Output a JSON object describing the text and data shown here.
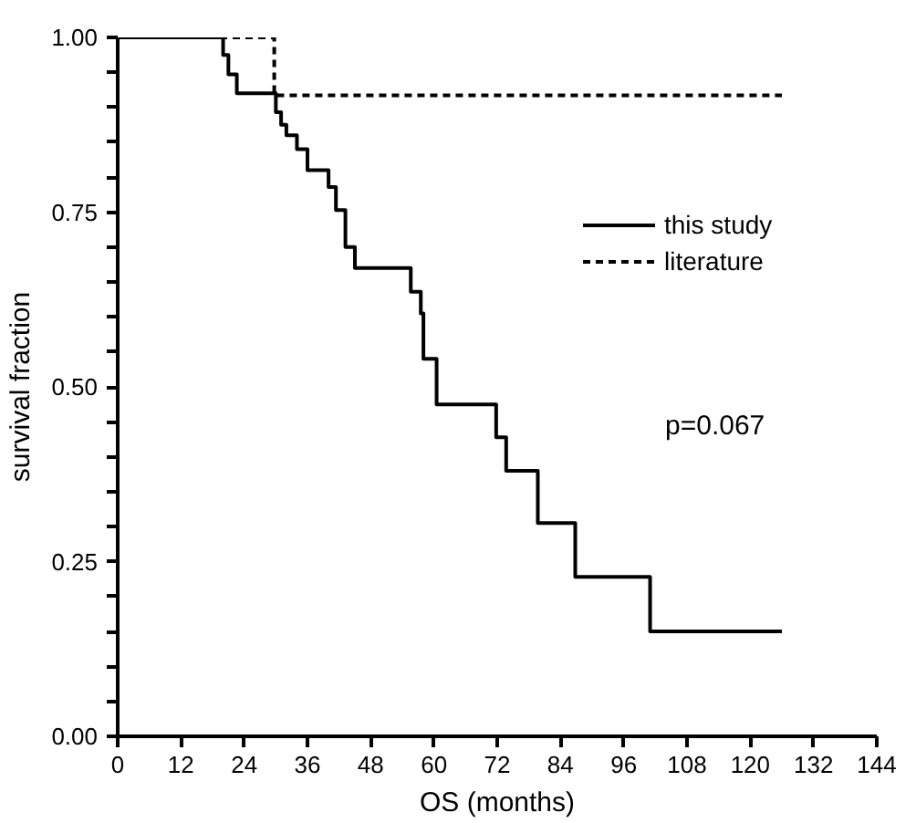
{
  "chart_data": {
    "type": "step",
    "xlabel": "OS (months)",
    "ylabel": "survival fraction",
    "xlim": [
      0,
      144
    ],
    "ylim": [
      0,
      1
    ],
    "xticks": [
      0,
      12,
      24,
      36,
      48,
      60,
      72,
      84,
      96,
      108,
      120,
      132,
      144
    ],
    "yticks": [
      {
        "value": 0,
        "label": "0.00"
      },
      {
        "value": 0.05,
        "label": null
      },
      {
        "value": 0.1,
        "label": null
      },
      {
        "value": 0.15,
        "label": null
      },
      {
        "value": 0.2,
        "label": null
      },
      {
        "value": 0.25,
        "label": "0.25"
      },
      {
        "value": 0.3,
        "label": null
      },
      {
        "value": 0.35,
        "label": null
      },
      {
        "value": 0.4,
        "label": null
      },
      {
        "value": 0.45,
        "label": null
      },
      {
        "value": 0.5,
        "label": "0.50"
      },
      {
        "value": 0.55,
        "label": null
      },
      {
        "value": 0.6,
        "label": null
      },
      {
        "value": 0.65,
        "label": null
      },
      {
        "value": 0.7,
        "label": null
      },
      {
        "value": 0.75,
        "label": "0.75"
      },
      {
        "value": 0.8,
        "label": null
      },
      {
        "value": 0.85,
        "label": null
      },
      {
        "value": 0.9,
        "label": null
      },
      {
        "value": 0.95,
        "label": null
      },
      {
        "value": 1,
        "label": "1.00"
      }
    ],
    "grid": false,
    "legend": "right",
    "annotations": [
      "p=0.067"
    ],
    "series": [
      {
        "name": "this study",
        "color": "#000000",
        "line_style": "solid",
        "x": [
          0,
          20,
          21,
          22.6,
          30,
          31,
          32,
          34,
          36,
          40,
          41.4,
          43.2,
          45,
          55.6,
          57.5,
          58,
          60.5,
          71.8,
          73.7,
          79.7,
          86.8,
          101,
          126
        ],
        "values": [
          1.0,
          0.975,
          0.947,
          0.92,
          0.893,
          0.875,
          0.86,
          0.84,
          0.81,
          0.786,
          0.753,
          0.7,
          0.67,
          0.636,
          0.605,
          0.54,
          0.475,
          0.428,
          0.38,
          0.305,
          0.228,
          0.15,
          0.15
        ]
      },
      {
        "name": "literature",
        "color": "#000000",
        "line_style": "dashed",
        "x": [
          0,
          29.7,
          126
        ],
        "values": [
          1.0,
          0.917,
          0.917
        ]
      }
    ]
  }
}
